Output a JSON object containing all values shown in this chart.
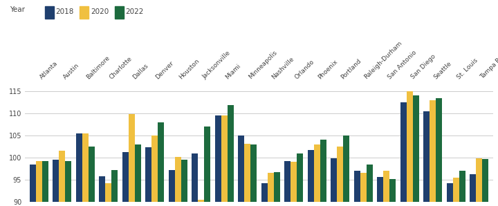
{
  "categories": [
    "Atlanta",
    "Austin",
    "Baltimore",
    "Charlotte",
    "Dallas",
    "Denver",
    "Houston",
    "Jacksonville",
    "Miami",
    "Minneapolis",
    "Nashville",
    "Orlando",
    "Phoenix",
    "Portland",
    "Raleigh-Durham",
    "San Antonio",
    "San Diego",
    "Seattle",
    "St. Louis",
    "Tampa Bay"
  ],
  "values_2018": [
    98.5,
    99.5,
    105.5,
    95.8,
    101.2,
    102.3,
    97.2,
    101.0,
    109.5,
    105.0,
    94.2,
    99.3,
    101.8,
    99.8,
    97.0,
    95.7,
    112.5,
    110.5,
    94.2,
    96.2
  ],
  "values_2020": [
    99.3,
    101.5,
    105.5,
    94.2,
    109.8,
    105.0,
    100.2,
    90.5,
    109.5,
    103.2,
    96.5,
    99.0,
    103.0,
    102.5,
    96.5,
    97.0,
    115.0,
    113.0,
    95.5,
    99.8
  ],
  "values_2022": [
    99.2,
    99.3,
    102.5,
    97.2,
    103.0,
    108.0,
    99.5,
    107.0,
    111.8,
    103.0,
    96.8,
    100.9,
    104.0,
    105.0,
    98.5,
    95.2,
    114.0,
    113.5,
    97.0,
    99.7
  ],
  "color_2018": "#1f3f6e",
  "color_2020": "#f0c040",
  "color_2022": "#1d6b3e",
  "ylim": [
    90,
    117
  ],
  "yticks": [
    90,
    95,
    100,
    105,
    110,
    115
  ],
  "legend_title": "Year",
  "background_color": "#ffffff",
  "grid_color": "#cccccc"
}
